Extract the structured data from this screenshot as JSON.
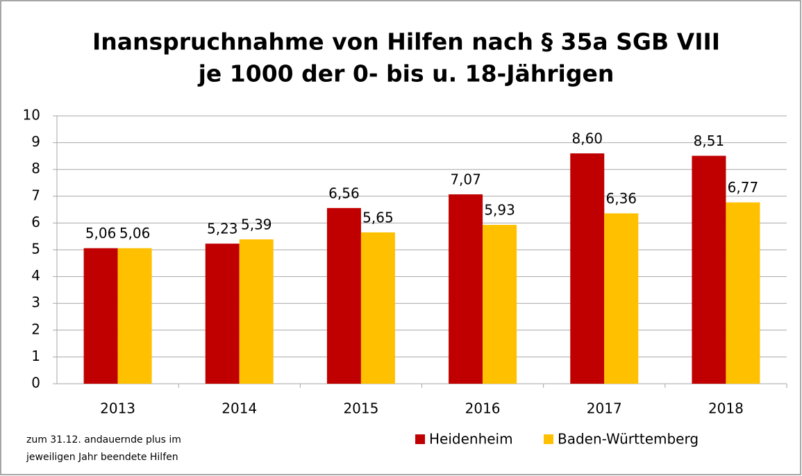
{
  "chart_data": {
    "type": "bar",
    "title": "Inanspruchnahme von Hilfen nach § 35a SGB VIII",
    "subtitle": "je 1000 der 0- bis u. 18-Jährigen",
    "categories": [
      "2013",
      "2014",
      "2015",
      "2016",
      "2017",
      "2018"
    ],
    "series": [
      {
        "name": "Heidenheim",
        "color": "#c00000",
        "values": [
          5.06,
          5.23,
          6.56,
          7.07,
          8.6,
          8.51
        ],
        "value_labels": [
          "5,06",
          "5,23",
          "6,56",
          "7,07",
          "8,60",
          "8,51"
        ]
      },
      {
        "name": "Baden-Württemberg",
        "color": "#ffc000",
        "values": [
          5.06,
          5.39,
          5.65,
          5.93,
          6.36,
          6.77
        ],
        "value_labels": [
          "5,06",
          "5,39",
          "5,65",
          "5,93",
          "6,36",
          "6,77"
        ]
      }
    ],
    "ylim": [
      0,
      10
    ],
    "yticks": [
      0,
      1,
      2,
      3,
      4,
      5,
      6,
      7,
      8,
      9,
      10
    ],
    "grid": true,
    "legend": "bottom",
    "annotations": [
      "zum 31.12.  andauernde plus im",
      "jeweiligen Jahr beendete Hilfen"
    ]
  }
}
